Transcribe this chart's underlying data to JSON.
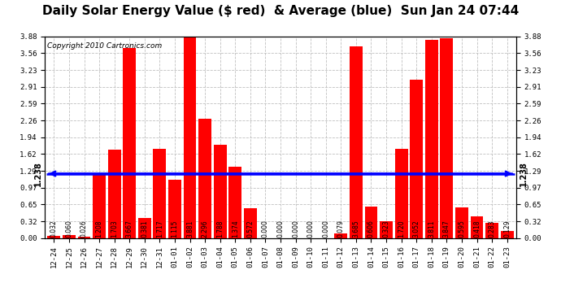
{
  "title": "Daily Solar Energy Value ($ red)  & Average (blue)  Sun Jan 24 07:44",
  "copyright": "Copyright 2010 Cartronics.com",
  "categories": [
    "12-24",
    "12-25",
    "12-26",
    "12-27",
    "12-28",
    "12-29",
    "12-30",
    "12-31",
    "01-01",
    "01-02",
    "01-03",
    "01-04",
    "01-05",
    "01-06",
    "01-07",
    "01-08",
    "01-09",
    "01-10",
    "01-11",
    "01-12",
    "01-13",
    "01-14",
    "01-15",
    "01-16",
    "01-17",
    "01-18",
    "01-19",
    "01-20",
    "01-21",
    "01-22",
    "01-23"
  ],
  "values": [
    0.032,
    0.06,
    0.026,
    1.208,
    1.703,
    3.667,
    0.381,
    1.717,
    1.115,
    3.881,
    2.296,
    1.788,
    1.374,
    0.572,
    0.0,
    0.0,
    0.0,
    0.0,
    0.0,
    0.079,
    3.685,
    0.606,
    0.323,
    1.72,
    3.052,
    3.811,
    3.847,
    0.595,
    0.418,
    0.283,
    0.129
  ],
  "average": 1.238,
  "bar_color": "#ff0000",
  "avg_color": "#0000ff",
  "bg_color": "#ffffff",
  "plot_bg_color": "#ffffff",
  "grid_color": "#c0c0c0",
  "title_fontsize": 11,
  "copyright_fontsize": 6.5,
  "tick_fontsize": 6.5,
  "value_fontsize": 5.5,
  "avg_label_fontsize": 7,
  "ylim": [
    0.0,
    3.88
  ],
  "yticks": [
    0.0,
    0.32,
    0.65,
    0.97,
    1.29,
    1.62,
    1.94,
    2.26,
    2.59,
    2.91,
    3.23,
    3.56,
    3.88
  ]
}
